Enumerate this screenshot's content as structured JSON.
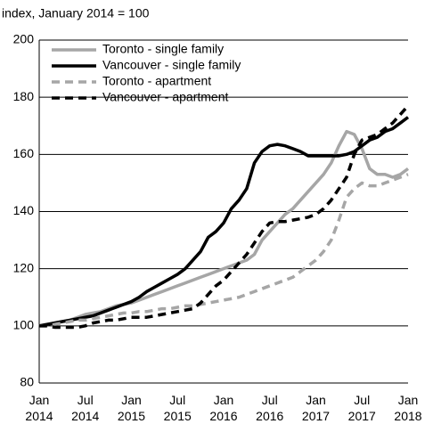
{
  "chart_data": {
    "type": "line",
    "title": "index, January 2014 = 100",
    "categories": [
      "Jan 2014",
      null,
      null,
      null,
      null,
      null,
      "Jul 2014",
      null,
      null,
      null,
      null,
      null,
      "Jan 2015",
      null,
      null,
      null,
      null,
      null,
      "Jul 2015",
      null,
      null,
      null,
      null,
      null,
      "Jan 2016",
      null,
      null,
      null,
      null,
      null,
      "Jul 2016",
      null,
      null,
      null,
      null,
      null,
      "Jan 2017",
      null,
      null,
      null,
      null,
      null,
      "Jul 2017",
      null,
      null,
      null,
      null,
      null,
      "Jan 2018"
    ],
    "series": [
      {
        "name": "Toronto - single family",
        "color": "#a6a6a6",
        "dash": false,
        "values": [
          100,
          100.5,
          101,
          101.5,
          102,
          103,
          104,
          104.5,
          105,
          106,
          107,
          107.5,
          108,
          109,
          110,
          111,
          112,
          113,
          114,
          115,
          116,
          117,
          118,
          119,
          120,
          121,
          122,
          123,
          125,
          130,
          133,
          136,
          139,
          141,
          144,
          147,
          150,
          153,
          157,
          163,
          168,
          167,
          162,
          155,
          153,
          153,
          152,
          153,
          155
        ]
      },
      {
        "name": "Vancouver - single family",
        "color": "#000000",
        "dash": false,
        "values": [
          100,
          100.5,
          101,
          101.5,
          102,
          102.5,
          103,
          103.5,
          104.5,
          105.5,
          106.5,
          107.5,
          108.5,
          110,
          112,
          113.5,
          115,
          116.5,
          118,
          120,
          123,
          126,
          131,
          133,
          136,
          141,
          144,
          148,
          157,
          161,
          163,
          163.5,
          163,
          162,
          161,
          159.5,
          159.5,
          159.5,
          159.5,
          159.5,
          160,
          161,
          163,
          165,
          166,
          168,
          169,
          171,
          173
        ]
      },
      {
        "name": "Toronto - apartment",
        "color": "#a6a6a6",
        "dash": true,
        "values": [
          100,
          100,
          100.5,
          101,
          101.5,
          102,
          102,
          102.5,
          103,
          103.5,
          104,
          104.5,
          104.5,
          105,
          105,
          105.5,
          106,
          106,
          106.5,
          107,
          107,
          107.5,
          108,
          108.5,
          109,
          109.5,
          110,
          111,
          112,
          113,
          114,
          115,
          116,
          117,
          119,
          121,
          123,
          126,
          130,
          137,
          145,
          148,
          150,
          149,
          149,
          150,
          151,
          152,
          153
        ]
      },
      {
        "name": "Vancouver - apartment",
        "color": "#000000",
        "dash": true,
        "values": [
          100,
          100,
          99.5,
          99.5,
          99.5,
          99.5,
          100,
          101,
          101.5,
          102,
          102,
          102.5,
          103,
          103,
          103,
          103.5,
          104,
          104.5,
          105,
          105.5,
          106,
          108,
          111,
          114,
          116,
          119,
          122,
          125,
          129,
          133,
          136,
          136.5,
          136.5,
          137,
          137.5,
          138,
          139,
          141,
          144,
          148,
          152,
          160,
          165,
          166,
          167,
          169,
          171,
          174,
          177
        ]
      }
    ],
    "ylim": [
      80,
      200
    ],
    "yticks": [
      80,
      100,
      120,
      140,
      160,
      180,
      200
    ],
    "grid": true
  }
}
